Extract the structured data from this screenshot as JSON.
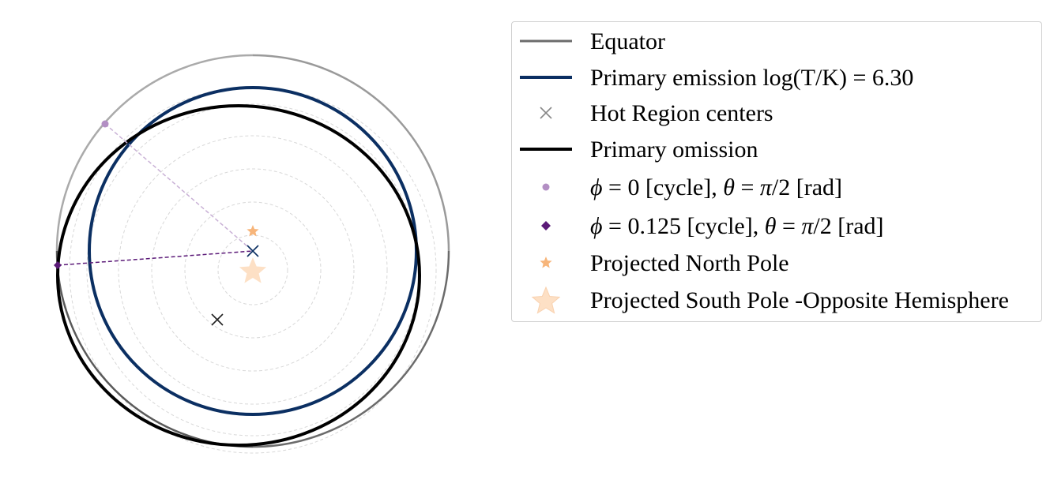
{
  "chart_data": {
    "type": "polar-projection",
    "grid": true,
    "equator": {
      "label": "Equator",
      "color": "#6b6b6b"
    },
    "primary_emission": {
      "label": "Primary emission log(T/K) = 6.30",
      "color": "#0b2f62"
    },
    "hot_region_centers": {
      "label": "Hot Region centers",
      "color": "#555555"
    },
    "primary_omission": {
      "label": "Primary omission",
      "color": "#000000"
    },
    "phase_markers": [
      {
        "label_phi": "0",
        "label_theta": "π/2",
        "color": "#b38fc4",
        "marker": "circle"
      },
      {
        "label_phi": "0.125",
        "label_theta": "π/2",
        "color": "#5b1a78",
        "marker": "diamond"
      }
    ],
    "north_pole": {
      "label": "Projected North Pole",
      "color": "#f7b57a"
    },
    "south_pole": {
      "label": "Projected South Pole  -Opposite Hemisphere",
      "color": "#fde0c5"
    }
  },
  "legend": {
    "placement": "right",
    "entries": [
      {
        "text": "Equator"
      },
      {
        "text": "Primary emission log(T/K) = 6.30"
      },
      {
        "text": "Hot Region centers"
      },
      {
        "text": "Primary omission"
      },
      {
        "prefix": "ϕ",
        "mid1": " = 0 [cycle], ",
        "theta": "θ",
        "mid2": " = ",
        "pi": "π",
        "suffix": "/2 [rad]"
      },
      {
        "prefix": "ϕ",
        "mid1": " = 0.125 [cycle], ",
        "theta": "θ",
        "mid2": " = ",
        "pi": "π",
        "suffix": "/2 [rad]"
      },
      {
        "text": "Projected North Pole"
      },
      {
        "text": "Projected South Pole  -Opposite Hemisphere"
      }
    ]
  }
}
